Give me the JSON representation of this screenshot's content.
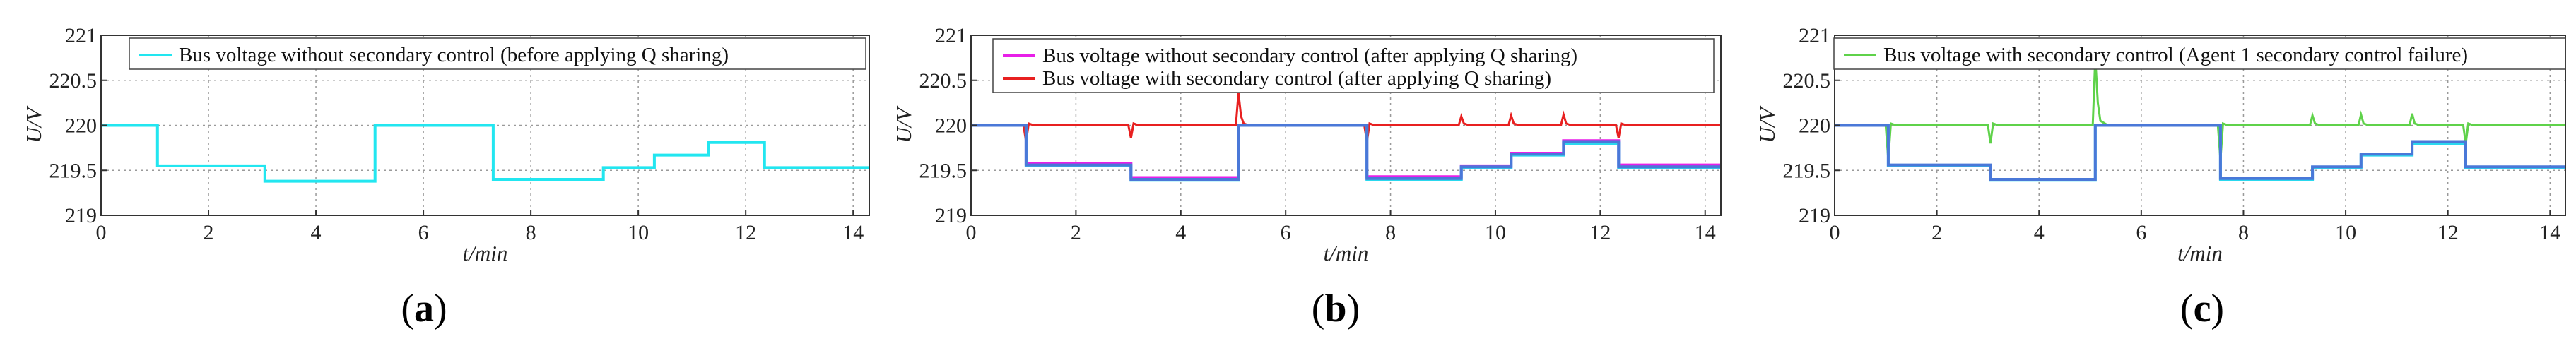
{
  "chart_data": [
    {
      "type": "line",
      "panel_label": "a",
      "xlabel": "t/min",
      "ylabel": "U/V",
      "xlim": [
        0,
        14.3
      ],
      "ylim": [
        219,
        221
      ],
      "xticks": [
        0,
        2,
        4,
        6,
        8,
        10,
        12,
        14
      ],
      "yticks": [
        219,
        219.5,
        220,
        220.5,
        221
      ],
      "ytick_labels": [
        "219",
        "219.5",
        "220",
        "220.5",
        "221"
      ],
      "grid": true,
      "legend_position": "top-right",
      "series": [
        {
          "name": "Bus voltage without secondary control (before applying Q sharing)",
          "color": "#22e6f0",
          "style": "step",
          "x": [
            0,
            1.05,
            1.05,
            3.05,
            3.05,
            5.1,
            5.1,
            7.3,
            7.3,
            9.35,
            9.35,
            10.3,
            10.3,
            11.3,
            11.3,
            12.35,
            12.35,
            14.3
          ],
          "y": [
            220,
            220,
            219.55,
            219.55,
            219.38,
            219.38,
            220,
            220,
            219.4,
            219.4,
            219.53,
            219.53,
            219.67,
            219.67,
            219.81,
            219.81,
            219.53,
            219.53
          ]
        }
      ]
    },
    {
      "type": "line",
      "panel_label": "b",
      "xlabel": "t/min",
      "ylabel": "U/V",
      "xlim": [
        0,
        14.3
      ],
      "ylim": [
        219,
        221
      ],
      "xticks": [
        0,
        2,
        4,
        6,
        8,
        10,
        12,
        14
      ],
      "yticks": [
        219,
        219.5,
        220,
        220.5,
        221
      ],
      "ytick_labels": [
        "219",
        "219.5",
        "220",
        "220.5",
        "221"
      ],
      "grid": true,
      "legend_position": "top-right",
      "series": [
        {
          "name": "Bus voltage without secondary control (after applying Q sharing)",
          "color": "#e81fe8",
          "style": "step",
          "x": [
            0,
            1.05,
            1.05,
            3.05,
            3.05,
            5.1,
            5.1,
            7.55,
            7.55,
            9.35,
            9.35,
            10.3,
            10.3,
            11.3,
            11.3,
            12.35,
            12.35,
            14.3
          ],
          "y": [
            220,
            220,
            219.58,
            219.58,
            219.42,
            219.42,
            220,
            220,
            219.43,
            219.43,
            219.55,
            219.55,
            219.69,
            219.69,
            219.83,
            219.83,
            219.56,
            219.56
          ]
        },
        {
          "name": "Bus voltage with secondary control (after applying Q sharing)",
          "color": "#e82020",
          "style": "line",
          "x": [
            0,
            1.0,
            1.05,
            1.1,
            1.2,
            3.0,
            3.05,
            3.1,
            3.2,
            5.05,
            5.1,
            5.15,
            5.2,
            5.3,
            7.5,
            7.55,
            7.6,
            7.7,
            9.3,
            9.35,
            9.4,
            9.5,
            10.25,
            10.3,
            10.35,
            10.45,
            11.25,
            11.3,
            11.35,
            11.45,
            12.3,
            12.35,
            12.4,
            12.5,
            14.3
          ],
          "y": [
            220,
            220,
            219.82,
            220.02,
            220,
            220,
            219.86,
            220.02,
            220,
            220,
            220.36,
            220.1,
            220.02,
            220,
            220,
            219.82,
            220.02,
            220,
            220,
            220.1,
            220.02,
            220,
            220,
            220.11,
            220.02,
            220,
            220,
            220.12,
            220.02,
            220,
            220,
            219.86,
            220.02,
            220,
            220
          ]
        },
        {
          "name": "",
          "color": "#2ad8ee",
          "style": "step",
          "x": [
            0,
            1.05,
            1.05,
            3.05,
            3.05,
            5.1,
            5.1,
            7.55,
            7.55,
            9.35,
            9.35,
            10.3,
            10.3,
            11.3,
            11.3,
            12.35,
            12.35,
            14.3
          ],
          "y": [
            220,
            220,
            219.55,
            219.55,
            219.39,
            219.39,
            220,
            220,
            219.4,
            219.4,
            219.53,
            219.53,
            219.67,
            219.67,
            219.8,
            219.8,
            219.53,
            219.53
          ]
        },
        {
          "name": "",
          "color": "#4a78d8",
          "style": "step",
          "x": [
            0,
            1.05,
            1.05,
            3.05,
            3.05,
            5.1,
            5.1,
            7.55,
            7.55,
            9.35,
            9.35,
            10.3,
            10.3,
            11.3,
            11.3,
            12.35,
            12.35,
            14.3
          ],
          "y": [
            220,
            220,
            219.56,
            219.56,
            219.4,
            219.4,
            220,
            220,
            219.41,
            219.41,
            219.54,
            219.54,
            219.68,
            219.68,
            219.82,
            219.82,
            219.54,
            219.54
          ]
        }
      ]
    },
    {
      "type": "line",
      "panel_label": "c",
      "xlabel": "t/min",
      "ylabel": "U/V",
      "xlim": [
        0,
        14.3
      ],
      "ylim": [
        219,
        221
      ],
      "xticks": [
        0,
        2,
        4,
        6,
        8,
        10,
        12,
        14
      ],
      "yticks": [
        219,
        219.5,
        220,
        220.5,
        221
      ],
      "ytick_labels": [
        "219",
        "219.5",
        "220",
        "220.5",
        "221"
      ],
      "grid": true,
      "legend_position": "top-right",
      "series": [
        {
          "name": "Bus voltage with secondary control (Agent 1 secondary control failure)",
          "color": "#5fd24a",
          "style": "line",
          "x": [
            0,
            1.0,
            1.05,
            1.1,
            1.2,
            3.0,
            3.05,
            3.1,
            3.2,
            5.05,
            5.1,
            5.15,
            5.2,
            5.35,
            7.5,
            7.55,
            7.6,
            7.7,
            9.3,
            9.35,
            9.4,
            9.5,
            10.25,
            10.3,
            10.35,
            10.45,
            11.25,
            11.3,
            11.35,
            11.45,
            12.3,
            12.35,
            12.4,
            12.5,
            14.3
          ],
          "y": [
            220,
            220,
            219.62,
            220.02,
            220,
            220,
            219.8,
            220.02,
            220,
            220,
            220.75,
            220.25,
            220.05,
            220,
            220,
            219.62,
            220.02,
            220,
            220,
            220.11,
            220.02,
            220,
            220,
            220.12,
            220.02,
            220,
            220,
            220.13,
            220.02,
            220,
            220,
            219.8,
            220.02,
            220,
            220
          ]
        },
        {
          "name": "",
          "color": "#2ad8ee",
          "style": "step",
          "x": [
            0,
            1.05,
            1.05,
            3.05,
            3.05,
            5.1,
            5.1,
            7.55,
            7.55,
            9.35,
            9.35,
            10.3,
            10.3,
            11.3,
            11.3,
            12.35,
            12.35,
            14.3
          ],
          "y": [
            220,
            220,
            219.55,
            219.55,
            219.39,
            219.39,
            220,
            220,
            219.4,
            219.4,
            219.53,
            219.53,
            219.67,
            219.67,
            219.8,
            219.8,
            219.53,
            219.53
          ]
        },
        {
          "name": "",
          "color": "#4a78d8",
          "style": "step",
          "x": [
            0,
            1.05,
            1.05,
            3.05,
            3.05,
            5.1,
            5.1,
            7.55,
            7.55,
            9.35,
            9.35,
            10.3,
            10.3,
            11.3,
            11.3,
            12.35,
            12.35,
            14.3
          ],
          "y": [
            220,
            220,
            219.56,
            219.56,
            219.4,
            219.4,
            220,
            220,
            219.41,
            219.41,
            219.54,
            219.54,
            219.68,
            219.68,
            219.82,
            219.82,
            219.54,
            219.54
          ]
        }
      ]
    }
  ]
}
